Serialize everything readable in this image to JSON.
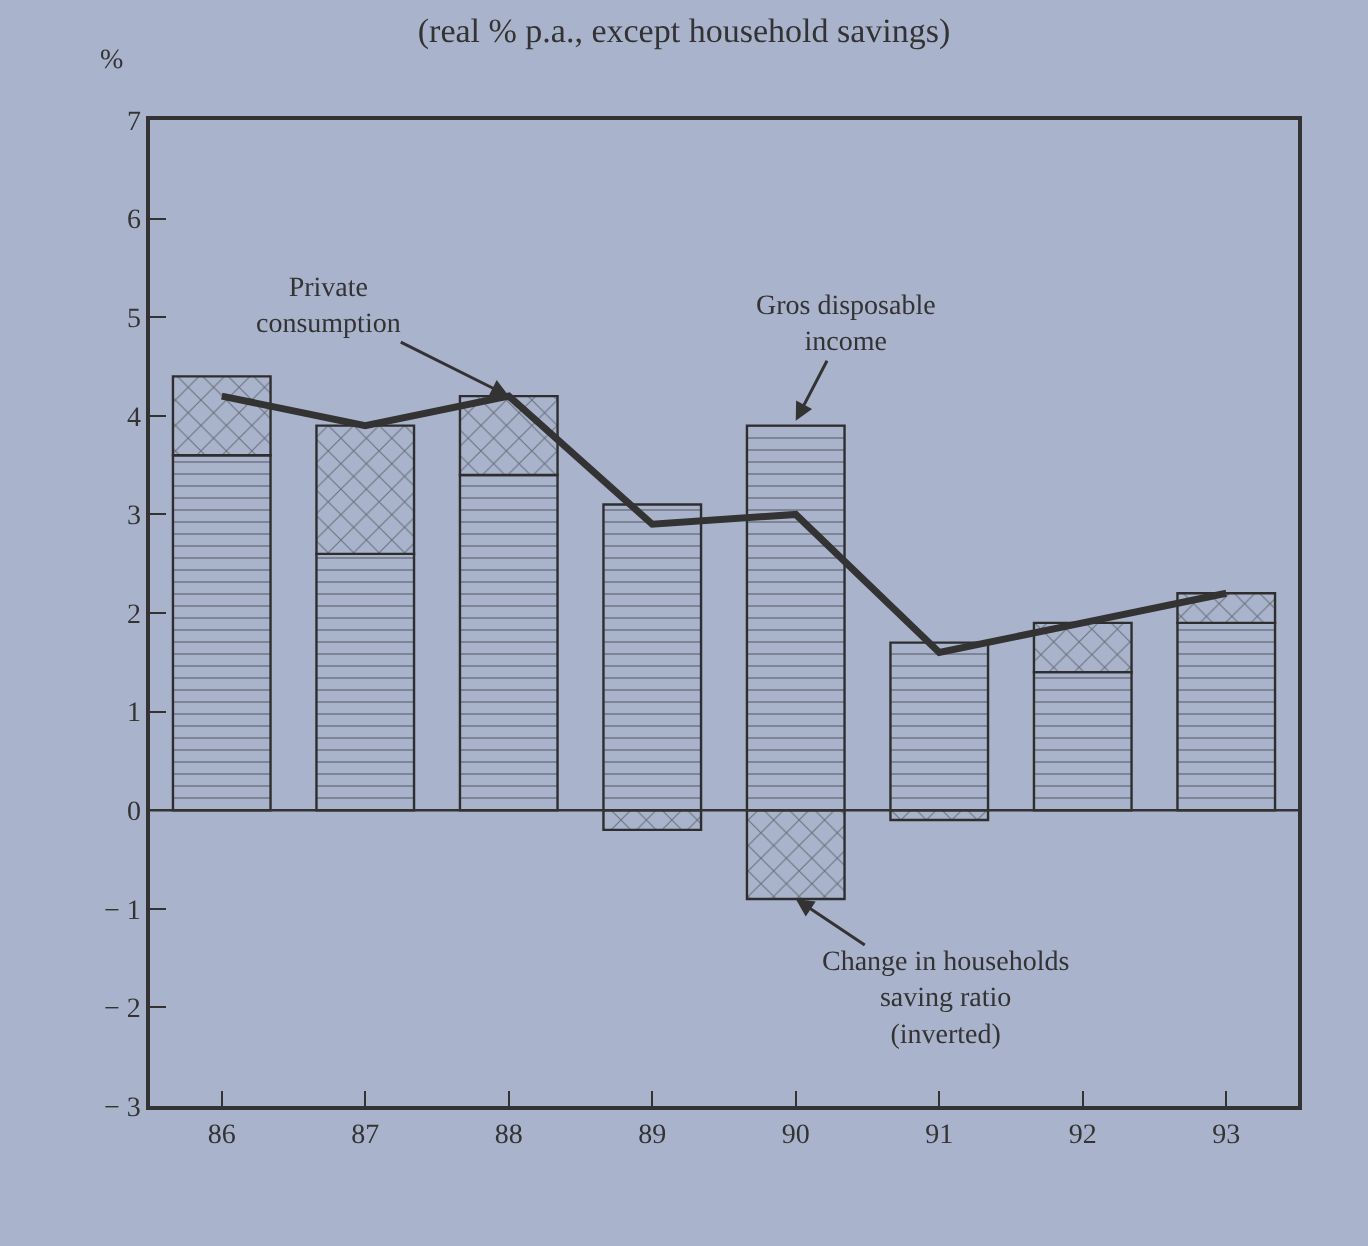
{
  "chart_data": {
    "type": "bar",
    "subtitle": "(real % p.a., except household savings)",
    "ylabel": "%",
    "categories": [
      "86",
      "87",
      "88",
      "89",
      "90",
      "91",
      "92",
      "93"
    ],
    "stacked": true,
    "series": [
      {
        "color": "#2e2e2e",
        "values": [
          3.6,
          2.6,
          3.4,
          3.1,
          3.9,
          1.7,
          1.4,
          1.9
        ]
      },
      {
        "color": "#2e2e2e",
        "values": [
          0.8,
          1.3,
          0.8,
          -0.2,
          -0.9,
          -0.1,
          0.5,
          0.3
        ]
      },
      {
        "type": "line",
        "color": "#333333",
        "values": [
          4.2,
          3.9,
          4.2,
          2.9,
          3.0,
          1.6,
          1.9,
          2.2
        ]
      }
    ],
    "annotations": [
      {
        "text": "Private\nconsumption",
        "x": "88",
        "y": 4.2
      },
      {
        "text": "Gros disposable\nincome",
        "x": "90",
        "y": 3.95
      },
      {
        "text": "Change in households\nsaving ratio\n(inverted)",
        "x": "90",
        "y": -0.9
      }
    ],
    "ref_lines": [
      {
        "axis": "y",
        "value": 0,
        "color": "#333333"
      }
    ],
    "ylim": [
      -3,
      7
    ],
    "yticks": [
      -3,
      -2,
      -1,
      0,
      1,
      2,
      3,
      4,
      5,
      6,
      7
    ],
    "grid": false,
    "marker": "none",
    "line_style": "solid"
  }
}
